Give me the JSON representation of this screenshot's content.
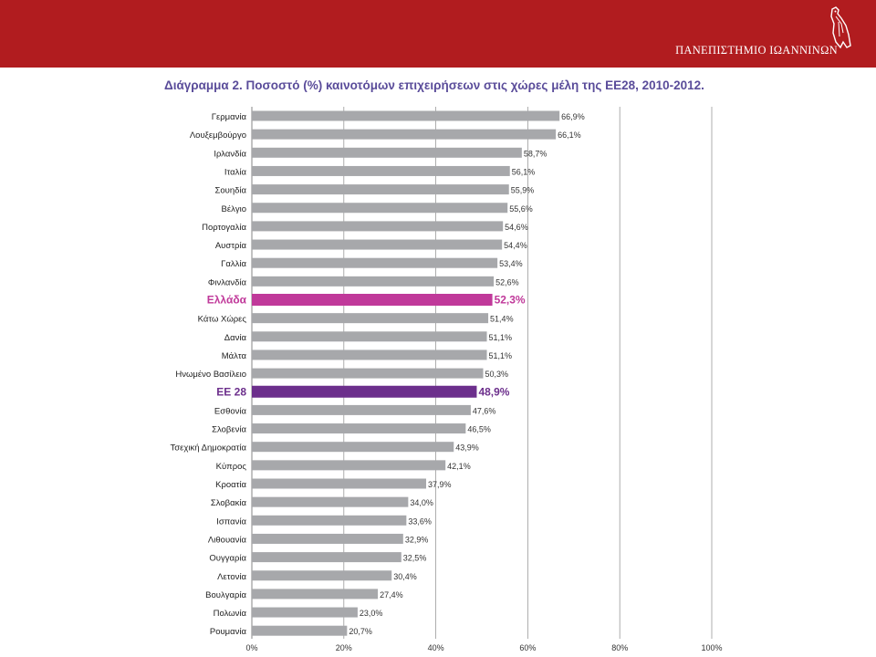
{
  "colors": {
    "banner": "#b11c1f",
    "bar": "#a7a8ab",
    "highlight_greece": "#c0399a",
    "highlight_eu": "#6c2f8c",
    "title_text": "#5a4c9a",
    "grid": "#9a9a9a"
  },
  "header": {
    "university": "ΠΑΝΕΠΙΣΤΗΜΙΟ ΙΩΑΝΝΙΝΩΝ",
    "logo_icon": "owl-emblem-icon"
  },
  "chart_data": {
    "type": "bar",
    "orientation": "horizontal",
    "title": "Διάγραμμα 2. Ποσοστό (%) καινοτόμων επιχειρήσεων στις χώρες μέλη της ΕΕ28, 2010-2012.",
    "categories": [
      "Γερμανία",
      "Λουξεμβούργο",
      "Ιρλανδία",
      "Ιταλία",
      "Σουηδία",
      "Βέλγιο",
      "Πορτογαλία",
      "Αυστρία",
      "Γαλλία",
      "Φινλανδία",
      "Ελλάδα",
      "Κάτω Χώρες",
      "Δανία",
      "Μάλτα",
      "Ηνωμένο Βασίλειο",
      "ΕΕ 28",
      "Εσθονία",
      "Σλοβενία",
      "Τσεχική Δημοκρατία",
      "Κύπρος",
      "Κροατία",
      "Σλοβακία",
      "Ισπανία",
      "Λιθουανία",
      "Ουγγαρία",
      "Λετονία",
      "Βουλγαρία",
      "Πολωνία",
      "Ρουμανία"
    ],
    "values": [
      66.9,
      66.1,
      58.7,
      56.1,
      55.9,
      55.6,
      54.6,
      54.4,
      53.4,
      52.6,
      52.3,
      51.4,
      51.1,
      51.1,
      50.3,
      48.9,
      47.6,
      46.5,
      43.9,
      42.1,
      37.9,
      34.0,
      33.6,
      32.9,
      32.5,
      30.4,
      27.4,
      23.0,
      20.7
    ],
    "value_labels": [
      "66,9%",
      "66,1%",
      "58,7%",
      "56,1%",
      "55,9%",
      "55,6%",
      "54,6%",
      "54,4%",
      "53,4%",
      "52,6%",
      "52,3%",
      "51,4%",
      "51,1%",
      "51,1%",
      "50,3%",
      "48,9%",
      "47,6%",
      "46,5%",
      "43,9%",
      "42,1%",
      "37,9%",
      "34,0%",
      "33,6%",
      "32,9%",
      "32,5%",
      "30,4%",
      "27,4%",
      "23,0%",
      "20,7%"
    ],
    "highlight": {
      "Ελλάδα": "greece",
      "ΕΕ 28": "eu"
    },
    "x_ticks": [
      0,
      20,
      40,
      60,
      80,
      100
    ],
    "x_tick_labels": [
      "0%",
      "20%",
      "40%",
      "60%",
      "80%",
      "100%"
    ],
    "xlim": [
      0,
      100
    ],
    "xlabel": "",
    "ylabel": "",
    "grid": true
  }
}
